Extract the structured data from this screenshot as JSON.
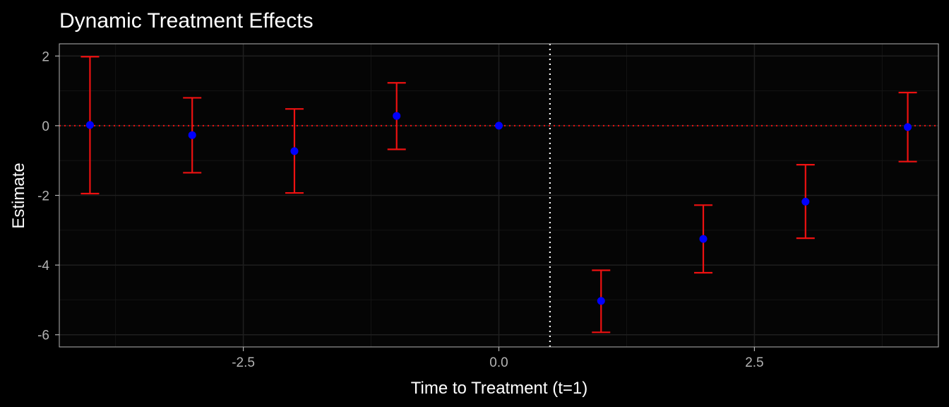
{
  "chart_data": {
    "type": "scatter",
    "title": "Dynamic Treatment Effects",
    "xlabel": "Time to Treatment (t=1)",
    "ylabel": "Estimate",
    "xlim": [
      -4.3,
      4.3
    ],
    "ylim": [
      -6.35,
      2.35
    ],
    "x_ticks": [
      -2.5,
      0.0,
      2.5
    ],
    "x_tick_labels": [
      "-2.5",
      "0.0",
      "2.5"
    ],
    "x_minor": [
      -3.75,
      -1.25,
      1.25,
      3.75
    ],
    "y_ticks": [
      2,
      0,
      -2,
      -4,
      -6
    ],
    "y_tick_labels": [
      "2",
      "0",
      "-2",
      "-4",
      "-6"
    ],
    "y_minor": [
      1,
      -1,
      -3,
      -5
    ],
    "grid": true,
    "reference_lines": {
      "horizontal_y": 0,
      "vertical_x": 0.5
    },
    "points": [
      {
        "x": -4,
        "y": 0.02,
        "lower": -1.95,
        "upper": 1.98
      },
      {
        "x": -3,
        "y": -0.27,
        "lower": -1.35,
        "upper": 0.8
      },
      {
        "x": -2,
        "y": -0.73,
        "lower": -1.93,
        "upper": 0.48
      },
      {
        "x": -1,
        "y": 0.28,
        "lower": -0.68,
        "upper": 1.23
      },
      {
        "x": 0,
        "y": 0.0,
        "lower": 0.0,
        "upper": 0.0
      },
      {
        "x": 1,
        "y": -5.03,
        "lower": -5.93,
        "upper": -4.15
      },
      {
        "x": 2,
        "y": -3.25,
        "lower": -4.22,
        "upper": -2.28
      },
      {
        "x": 3,
        "y": -2.18,
        "lower": -3.23,
        "upper": -1.12
      },
      {
        "x": 4,
        "y": -0.04,
        "lower": -1.03,
        "upper": 0.95
      }
    ],
    "colors": {
      "background": "#000000",
      "panel": "#050505",
      "grid_major": "#1f1f1f",
      "grid_minor": "#141414",
      "border": "#b3b3b3",
      "point": "#0000ff",
      "error_bar": "#ee1111",
      "hline": "#ee1111",
      "vline": "#ffffff"
    }
  }
}
